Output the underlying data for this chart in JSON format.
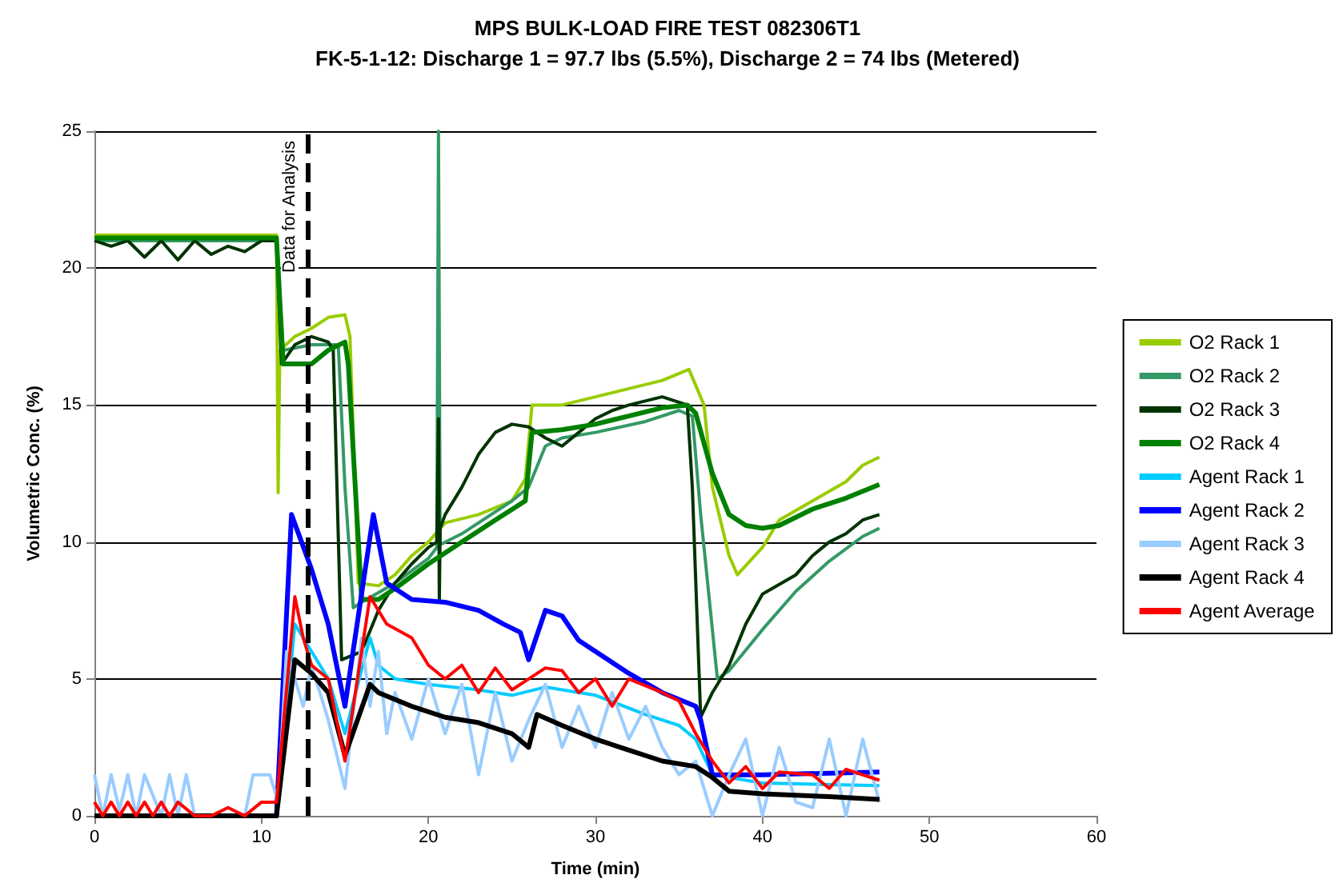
{
  "chart_data": {
    "type": "line",
    "title": "MPS BULK-LOAD FIRE TEST 082306T1",
    "subtitle": "FK-5-1-12: Discharge 1 = 97.7 lbs (5.5%), Discharge 2 = 74 lbs (Metered)",
    "xlabel": "Time (min)",
    "ylabel": "Volumetric Conc. (%)",
    "xlim": [
      0,
      60
    ],
    "xticks": [
      0,
      10,
      20,
      30,
      40,
      50,
      60
    ],
    "ylim": [
      0,
      25
    ],
    "yticks": [
      0,
      5,
      10,
      15,
      20,
      25
    ],
    "grid": "y",
    "legend": "right",
    "marker": "none",
    "line_style": "solid",
    "ref_lines": [
      {
        "axis": "x",
        "value": 12.8,
        "label": "Data for Analysis",
        "color": "#000000",
        "line_style": "dashed"
      }
    ],
    "series": [
      {
        "name": "O2 Rack 1",
        "color": "#99cc00",
        "x": [
          0,
          5,
          10.9,
          11.0,
          11.1,
          12,
          13,
          14,
          15,
          15.3,
          15.8,
          17,
          18,
          19,
          20,
          21,
          23,
          25,
          25.8,
          26.2,
          28,
          30,
          32,
          34,
          35.6,
          36.5,
          37,
          38,
          38.5,
          40,
          41,
          43,
          45,
          46,
          47
        ],
        "values": [
          21.2,
          21.2,
          21.2,
          11.8,
          17,
          17.5,
          17.8,
          18.2,
          18.3,
          17.5,
          8.5,
          8.4,
          8.8,
          9.5,
          10,
          10.7,
          11,
          11.5,
          12.3,
          15,
          15,
          15.3,
          15.6,
          15.9,
          16.3,
          15,
          12,
          9.5,
          8.8,
          9.8,
          10.8,
          11.5,
          12.2,
          12.8,
          13.1
        ]
      },
      {
        "name": "O2 Rack 2",
        "color": "#339966",
        "x": [
          0,
          5,
          10.9,
          11.3,
          13,
          14.6,
          15.0,
          15.5,
          16,
          18,
          20,
          20.5,
          20.6,
          20.7,
          22,
          25,
          26,
          27,
          28,
          30,
          33,
          35,
          35.8,
          36.3,
          37.3,
          38,
          40,
          42,
          44,
          46,
          47
        ],
        "values": [
          21.0,
          21.0,
          21.0,
          17,
          17.2,
          17.2,
          12,
          7.6,
          7.8,
          8.5,
          9.4,
          9.8,
          25,
          9.9,
          10.3,
          11.5,
          12,
          13.5,
          13.8,
          14,
          14.4,
          14.8,
          14.6,
          11,
          5,
          5.3,
          6.8,
          8.2,
          9.3,
          10.2,
          10.5
        ]
      },
      {
        "name": "O2 Rack 3",
        "color": "#003300",
        "x": [
          0,
          1,
          2,
          3,
          4,
          5,
          6,
          7,
          8,
          9,
          10,
          10.9,
          11.2,
          12,
          13,
          14,
          14.3,
          14.8,
          16,
          17,
          18,
          19,
          20,
          20.5,
          20.6,
          20.65,
          20.7,
          21,
          22,
          23,
          24,
          25,
          26,
          27,
          28,
          29,
          30,
          31,
          32,
          34,
          35.5,
          35.8,
          36.3,
          37,
          38,
          39,
          40,
          42,
          43,
          44,
          45,
          46,
          47
        ],
        "values": [
          21,
          20.8,
          21,
          20.4,
          21,
          20.3,
          21,
          20.5,
          20.8,
          20.6,
          21,
          21,
          16.5,
          17.2,
          17.5,
          17.3,
          17,
          5.7,
          6,
          7.5,
          8.5,
          9.2,
          9.8,
          10,
          14.5,
          7.8,
          10.5,
          11,
          12,
          13.2,
          14,
          14.3,
          14.2,
          13.8,
          13.5,
          14,
          14.5,
          14.8,
          15,
          15.3,
          15,
          12,
          3.6,
          4.5,
          5.5,
          7,
          8.1,
          8.8,
          9.5,
          10,
          10.3,
          10.8,
          11
        ]
      },
      {
        "name": "O2 Rack 4",
        "color": "#008000",
        "x": [
          0,
          5,
          10.9,
          11.3,
          13,
          14,
          15,
          15.2,
          16,
          17,
          18,
          20,
          22,
          24,
          25.8,
          26.2,
          28,
          30,
          32,
          34,
          35.5,
          36,
          37,
          38,
          39,
          40,
          41,
          43,
          45,
          47
        ],
        "values": [
          21.1,
          21.1,
          21.1,
          16.5,
          16.5,
          17,
          17.3,
          16.5,
          7.9,
          7.9,
          8.3,
          9.2,
          10,
          10.8,
          11.5,
          14,
          14.1,
          14.3,
          14.6,
          14.9,
          15,
          14.7,
          12.5,
          11,
          10.6,
          10.5,
          10.6,
          11.2,
          11.6,
          12.1
        ]
      },
      {
        "name": "Agent Rack 1",
        "color": "#00ccff",
        "x": [
          0,
          10.9,
          12,
          13,
          14,
          15,
          16.5,
          17,
          18,
          20,
          23,
          25,
          27,
          30,
          33,
          35,
          36,
          37,
          40,
          47
        ],
        "values": [
          0,
          0,
          7,
          6,
          5,
          3,
          6.5,
          5.5,
          5,
          4.8,
          4.6,
          4.4,
          4.7,
          4.4,
          3.7,
          3.3,
          2.8,
          1.5,
          1.2,
          1.1
        ]
      },
      {
        "name": "Agent Rack 2",
        "color": "#0000ff",
        "x": [
          0,
          10.9,
          11.8,
          13,
          14,
          15,
          16.7,
          17.5,
          19,
          21,
          23,
          24.5,
          25.5,
          26,
          27,
          28,
          29,
          30,
          32,
          34,
          36,
          36.3,
          37,
          40,
          47
        ],
        "values": [
          0,
          0,
          11,
          9,
          7,
          4,
          11,
          8.5,
          7.9,
          7.8,
          7.5,
          7,
          6.7,
          5.7,
          7.5,
          7.3,
          6.4,
          6,
          5.2,
          4.5,
          4,
          3.5,
          1.5,
          1.5,
          1.6
        ]
      },
      {
        "name": "Agent Rack 3",
        "color": "#99ccff",
        "x": [
          0,
          0.5,
          1,
          1.5,
          2,
          2.5,
          3,
          4,
          4.5,
          5,
          5.5,
          6,
          7,
          8,
          9,
          9.5,
          10.5,
          11,
          11.5,
          12.5,
          13,
          14,
          15,
          16,
          16.5,
          17,
          17.5,
          18,
          19,
          20,
          21,
          22,
          23,
          24,
          25,
          26,
          27,
          28,
          29,
          30,
          31,
          32,
          33,
          34,
          35,
          36,
          37,
          38,
          39,
          40,
          41,
          42,
          43,
          44,
          45,
          46,
          47
        ],
        "values": [
          1.5,
          0,
          1.5,
          0.2,
          1.5,
          0,
          1.5,
          0,
          1.5,
          0,
          1.5,
          0,
          0,
          0,
          0,
          1.5,
          1.5,
          0.5,
          6,
          4,
          5.5,
          3.5,
          1,
          6.5,
          4,
          6,
          3,
          4.5,
          2.8,
          5,
          3,
          4.8,
          1.5,
          4.5,
          2,
          3.5,
          4.8,
          2.5,
          4,
          2.5,
          4.5,
          2.8,
          4,
          2.5,
          1.5,
          2,
          0,
          1.5,
          2.8,
          0,
          2.5,
          0.5,
          0.3,
          2.8,
          0,
          2.8,
          0.5
        ]
      },
      {
        "name": "Agent Rack 4",
        "color": "#000000",
        "x": [
          0,
          10.9,
          12,
          13,
          14,
          15,
          16.5,
          17,
          19,
          21,
          23,
          25,
          26,
          26.5,
          28,
          30,
          32,
          34,
          36,
          37,
          38,
          40,
          44,
          47
        ],
        "values": [
          0,
          0,
          5.7,
          5.2,
          4.5,
          2.2,
          4.8,
          4.5,
          4,
          3.6,
          3.4,
          3,
          2.5,
          3.7,
          3.3,
          2.8,
          2.4,
          2,
          1.8,
          1.4,
          0.9,
          0.8,
          0.7,
          0.6
        ]
      },
      {
        "name": "Agent Average",
        "color": "#ff0000",
        "x": [
          0,
          0.5,
          1,
          1.5,
          2,
          2.5,
          3,
          3.5,
          4,
          4.5,
          5,
          6,
          7,
          8,
          9,
          10,
          10.9,
          12,
          12.5,
          13,
          14,
          15,
          16.5,
          17.5,
          19,
          20,
          21,
          22,
          23,
          24,
          25,
          26,
          27,
          28,
          29,
          30,
          31,
          32,
          34,
          35,
          36,
          37,
          38,
          39,
          40,
          41,
          43,
          44,
          45,
          47
        ],
        "values": [
          0.5,
          0,
          0.5,
          0,
          0.5,
          0,
          0.5,
          0,
          0.5,
          0,
          0.5,
          0,
          0,
          0.3,
          0,
          0.5,
          0.5,
          8,
          6.5,
          5.5,
          5,
          2,
          8,
          7,
          6.5,
          5.5,
          5,
          5.5,
          4.5,
          5.4,
          4.6,
          5,
          5.4,
          5.3,
          4.5,
          5,
          4,
          5,
          4.5,
          4.2,
          3,
          2,
          1.2,
          1.8,
          1,
          1.6,
          1.5,
          1,
          1.7,
          1.3
        ]
      }
    ]
  }
}
